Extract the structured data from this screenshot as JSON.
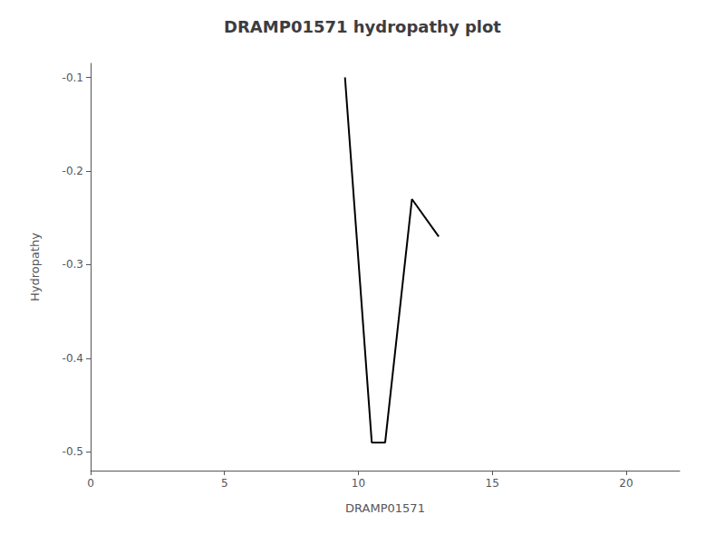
{
  "chart_data": {
    "type": "line",
    "title": "DRAMP01571 hydropathy plot",
    "xlabel": "DRAMP01571",
    "ylabel": "Hydropathy",
    "x": [
      9.5,
      10.5,
      11.0,
      12.0,
      13.0
    ],
    "values": [
      -0.1,
      -0.49,
      -0.49,
      -0.23,
      -0.27
    ],
    "color": "#000000",
    "xlim": [
      0,
      22
    ],
    "ylim": [
      -0.52,
      -0.085
    ],
    "xticks": [
      0,
      5,
      10,
      15,
      20
    ],
    "yticks": [
      -0.5,
      -0.4,
      -0.3,
      -0.2,
      -0.1
    ],
    "grid": false
  }
}
